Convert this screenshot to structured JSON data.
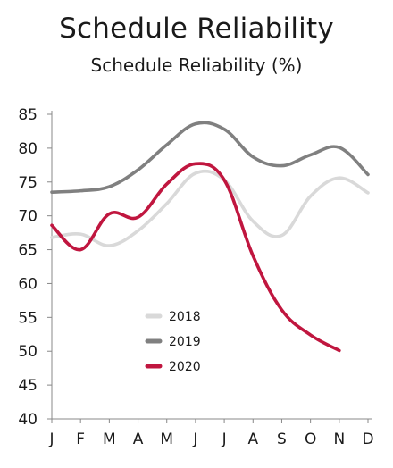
{
  "title": "Schedule Reliability",
  "subtitle": "Schedule Reliability (%)",
  "colors": {
    "2018": "#d9d9d9",
    "2019": "#808080",
    "2020": "#c0163f",
    "axis": "#888888",
    "text": "#1a1a1a"
  },
  "chart_data": {
    "type": "line",
    "title": "Schedule Reliability",
    "subtitle": "Schedule Reliability (%)",
    "xlabel": "",
    "ylabel": "",
    "categories": [
      "J",
      "F",
      "M",
      "A",
      "M",
      "J",
      "J",
      "A",
      "S",
      "O",
      "N",
      "D"
    ],
    "ylim": [
      40,
      85
    ],
    "yticks": [
      85,
      80,
      75,
      70,
      65,
      60,
      55,
      50,
      45,
      40
    ],
    "grid": false,
    "legend_position": "center-left",
    "series": [
      {
        "name": "2018",
        "values": [
          66.8,
          67.3,
          65.6,
          67.8,
          71.8,
          76.3,
          75.3,
          69.2,
          67.1,
          72.9,
          75.6,
          73.4
        ]
      },
      {
        "name": "2019",
        "values": [
          73.5,
          73.7,
          74.3,
          76.8,
          80.5,
          83.6,
          82.8,
          78.7,
          77.4,
          79.0,
          80.1,
          76.1
        ]
      },
      {
        "name": "2020",
        "values": [
          68.6,
          65.0,
          70.3,
          69.8,
          74.7,
          77.7,
          75.3,
          64.1,
          56.1,
          52.4,
          50.1,
          null
        ]
      }
    ]
  }
}
